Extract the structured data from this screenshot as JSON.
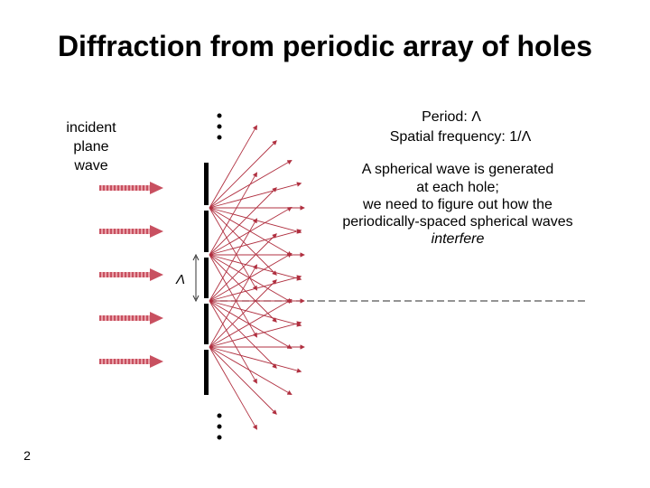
{
  "title": "Diffraction from periodic array of holes",
  "incident_label": [
    "incident",
    "plane",
    "wave"
  ],
  "period": "Period: Λ",
  "spatial_frequency": "Spatial frequency: 1/Λ",
  "description": [
    "A spherical wave is generated",
    "at each hole;",
    "we need to figure out how the",
    "periodically-spaced spherical waves",
    "interfere"
  ],
  "diagram": {
    "period_symbol": "Λ"
  },
  "page_number": "2"
}
